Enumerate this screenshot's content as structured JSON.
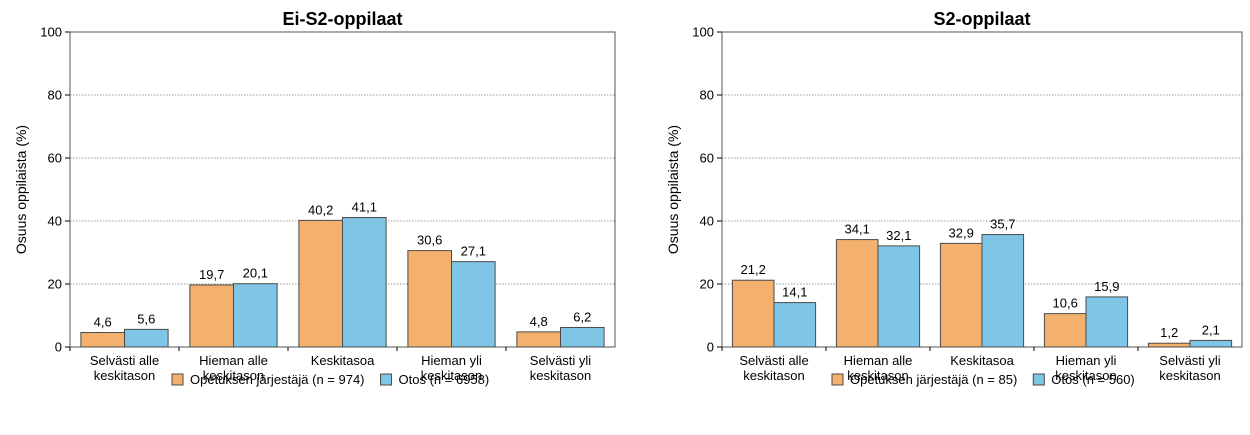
{
  "colors": {
    "series1": "#F4B16E",
    "series2": "#7FC5E6",
    "stroke": "#4a4a4a"
  },
  "chart_data": [
    {
      "type": "bar",
      "title": "Ei-S2-oppilaat",
      "ylabel": "Osuus oppilaista (%)",
      "xlabel": "",
      "ylim": [
        0,
        100
      ],
      "yticks": [
        0,
        20,
        40,
        60,
        80,
        100
      ],
      "grid": true,
      "legend": "bottom",
      "categories": [
        [
          "Selvästi alle",
          "keskitason"
        ],
        [
          "Hieman alle",
          "keskitason"
        ],
        [
          "Keskitasoa"
        ],
        [
          "Hieman yli",
          "keskitason"
        ],
        [
          "Selvästi yli",
          "keskitason"
        ]
      ],
      "series": [
        {
          "name": "Opetuksen järjestäjä (n = 974)",
          "values": [
            4.6,
            19.7,
            40.2,
            30.6,
            4.8
          ],
          "labels": [
            "4,6",
            "19,7",
            "40,2",
            "30,6",
            "4,8"
          ]
        },
        {
          "name": "Otos (n = 6958)",
          "values": [
            5.6,
            20.1,
            41.1,
            27.1,
            6.2
          ],
          "labels": [
            "5,6",
            "20,1",
            "41,1",
            "27,1",
            "6,2"
          ]
        }
      ]
    },
    {
      "type": "bar",
      "title": "S2-oppilaat",
      "ylabel": "Osuus oppilaista (%)",
      "xlabel": "",
      "ylim": [
        0,
        100
      ],
      "yticks": [
        0,
        20,
        40,
        60,
        80,
        100
      ],
      "grid": true,
      "legend": "bottom",
      "categories": [
        [
          "Selvästi alle",
          "keskitason"
        ],
        [
          "Hieman alle",
          "keskitason"
        ],
        [
          "Keskitasoa"
        ],
        [
          "Hieman yli",
          "keskitason"
        ],
        [
          "Selvästi yli",
          "keskitason"
        ]
      ],
      "series": [
        {
          "name": "Opetuksen järjestäjä (n = 85)",
          "values": [
            21.2,
            34.1,
            32.9,
            10.6,
            1.2
          ],
          "labels": [
            "21,2",
            "34,1",
            "32,9",
            "10,6",
            "1,2"
          ]
        },
        {
          "name": "Otos (n = 560)",
          "values": [
            14.1,
            32.1,
            35.7,
            15.9,
            2.1
          ],
          "labels": [
            "14,1",
            "32,1",
            "35,7",
            "15,9",
            "2,1"
          ]
        }
      ]
    }
  ]
}
